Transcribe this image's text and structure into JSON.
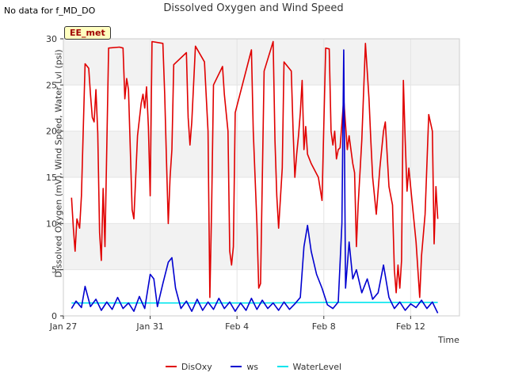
{
  "header": {
    "nodata_text": "No data for f_MD_DO",
    "badge": "EE_met"
  },
  "colors": {
    "DisOxy": "#e00000",
    "ws": "#0000d0",
    "WaterLevel": "#00e5ee",
    "band": "#f2f2f2",
    "grid": "#ffffff"
  },
  "chart_data": {
    "type": "line",
    "title": "Dissolved Oxygen and Wind Speed",
    "xlabel": "Time",
    "ylabel": "Dissolved Oxygen (mV), Wind Speed, Water Lvl (psi)",
    "xlim": [
      "2024-01-27",
      "2024-02-14T06:00"
    ],
    "ylim": [
      0,
      30
    ],
    "yticks": [
      0,
      5,
      10,
      15,
      20,
      25,
      30
    ],
    "xticks": [
      {
        "date": "2024-01-27",
        "label": "Jan 27"
      },
      {
        "date": "2024-01-31",
        "label": "Jan 31"
      },
      {
        "date": "2024-02-04",
        "label": "Feb 4"
      },
      {
        "date": "2024-02-08",
        "label": "Feb 8"
      },
      {
        "date": "2024-02-12",
        "label": "Feb 12"
      }
    ],
    "grid": true,
    "legend_position": "bottom",
    "series": [
      {
        "name": "DisOxy",
        "points": [
          [
            "2024-01-27T09:00",
            12.8
          ],
          [
            "2024-01-27T11:00",
            9.5
          ],
          [
            "2024-01-27T13:00",
            7.0
          ],
          [
            "2024-01-27T15:00",
            10.5
          ],
          [
            "2024-01-27T18:00",
            9.5
          ],
          [
            "2024-01-27T20:00",
            13.0
          ],
          [
            "2024-01-28T00:00",
            27.3
          ],
          [
            "2024-01-28T04:00",
            26.8
          ],
          [
            "2024-01-28T06:00",
            24.0
          ],
          [
            "2024-01-28T08:00",
            21.5
          ],
          [
            "2024-01-28T10:00",
            21.0
          ],
          [
            "2024-01-28T12:00",
            24.5
          ],
          [
            "2024-01-28T14:00",
            19.8
          ],
          [
            "2024-01-28T16:00",
            9.0
          ],
          [
            "2024-01-28T18:00",
            6.0
          ],
          [
            "2024-01-28T20:00",
            13.8
          ],
          [
            "2024-01-28T22:00",
            7.5
          ],
          [
            "2024-01-29T02:00",
            29.0
          ],
          [
            "2024-01-29T14:00",
            29.1
          ],
          [
            "2024-01-29T18:00",
            29.0
          ],
          [
            "2024-01-29T20:00",
            23.5
          ],
          [
            "2024-01-29T22:00",
            25.7
          ],
          [
            "2024-01-30T00:00",
            24.5
          ],
          [
            "2024-01-30T04:00",
            11.5
          ],
          [
            "2024-01-30T06:00",
            10.5
          ],
          [
            "2024-01-30T10:00",
            19.5
          ],
          [
            "2024-01-30T14:00",
            23.0
          ],
          [
            "2024-01-30T16:00",
            24.0
          ],
          [
            "2024-01-30T18:00",
            22.5
          ],
          [
            "2024-01-30T20:00",
            24.8
          ],
          [
            "2024-01-30T22:00",
            20.5
          ],
          [
            "2024-01-31T00:00",
            13.0
          ],
          [
            "2024-01-31T02:00",
            29.7
          ],
          [
            "2024-01-31T14:00",
            29.5
          ],
          [
            "2024-01-31T16:00",
            24.0
          ],
          [
            "2024-01-31T18:00",
            17.0
          ],
          [
            "2024-01-31T20:00",
            10.0
          ],
          [
            "2024-01-31T22:00",
            15.0
          ],
          [
            "2024-02-01T00:00",
            18.0
          ],
          [
            "2024-02-01T02:00",
            27.2
          ],
          [
            "2024-02-01T16:00",
            28.5
          ],
          [
            "2024-02-01T18:00",
            21.5
          ],
          [
            "2024-02-01T20:00",
            18.5
          ],
          [
            "2024-02-01T22:00",
            21.0
          ],
          [
            "2024-02-02T02:00",
            29.2
          ],
          [
            "2024-02-02T12:00",
            27.5
          ],
          [
            "2024-02-02T16:00",
            20.0
          ],
          [
            "2024-02-02T18:00",
            2.0
          ],
          [
            "2024-02-02T20:00",
            12.0
          ],
          [
            "2024-02-02T22:00",
            25.0
          ],
          [
            "2024-02-03T08:00",
            27.0
          ],
          [
            "2024-02-03T10:00",
            24.0
          ],
          [
            "2024-02-03T14:00",
            20.0
          ],
          [
            "2024-02-03T16:00",
            7.0
          ],
          [
            "2024-02-03T18:00",
            5.5
          ],
          [
            "2024-02-03T20:00",
            7.5
          ],
          [
            "2024-02-03T22:00",
            22.0
          ],
          [
            "2024-02-04T16:00",
            28.8
          ],
          [
            "2024-02-04T18:00",
            20.0
          ],
          [
            "2024-02-04T22:00",
            10.0
          ],
          [
            "2024-02-05T00:00",
            3.0
          ],
          [
            "2024-02-05T02:00",
            3.5
          ],
          [
            "2024-02-05T06:00",
            26.5
          ],
          [
            "2024-02-05T16:00",
            29.7
          ],
          [
            "2024-02-05T18:00",
            19.0
          ],
          [
            "2024-02-05T20:00",
            13.0
          ],
          [
            "2024-02-05T22:00",
            9.5
          ],
          [
            "2024-02-06T02:00",
            16.0
          ],
          [
            "2024-02-06T04:00",
            27.5
          ],
          [
            "2024-02-06T12:00",
            26.5
          ],
          [
            "2024-02-06T14:00",
            20.0
          ],
          [
            "2024-02-06T16:00",
            15.0
          ],
          [
            "2024-02-06T18:00",
            17.5
          ],
          [
            "2024-02-06T20:00",
            19.5
          ],
          [
            "2024-02-06T22:00",
            22.0
          ],
          [
            "2024-02-07T00:00",
            25.5
          ],
          [
            "2024-02-07T02:00",
            18.0
          ],
          [
            "2024-02-07T04:00",
            20.5
          ],
          [
            "2024-02-07T06:00",
            17.5
          ],
          [
            "2024-02-07T10:00",
            16.5
          ],
          [
            "2024-02-07T18:00",
            15.0
          ],
          [
            "2024-02-07T22:00",
            12.5
          ],
          [
            "2024-02-08T02:00",
            29.0
          ],
          [
            "2024-02-08T06:00",
            28.9
          ],
          [
            "2024-02-08T08:00",
            20.0
          ],
          [
            "2024-02-08T10:00",
            18.5
          ],
          [
            "2024-02-08T12:00",
            20.0
          ],
          [
            "2024-02-08T14:00",
            17.0
          ],
          [
            "2024-02-08T16:00",
            18.0
          ],
          [
            "2024-02-08T18:00",
            18.2
          ],
          [
            "2024-02-08T22:00",
            23.5
          ],
          [
            "2024-02-09T02:00",
            18.0
          ],
          [
            "2024-02-09T04:00",
            19.5
          ],
          [
            "2024-02-09T08:00",
            16.5
          ],
          [
            "2024-02-09T10:00",
            15.5
          ],
          [
            "2024-02-09T12:00",
            7.5
          ],
          [
            "2024-02-09T14:00",
            12.0
          ],
          [
            "2024-02-09T18:00",
            19.0
          ],
          [
            "2024-02-09T22:00",
            29.5
          ],
          [
            "2024-02-10T02:00",
            23.5
          ],
          [
            "2024-02-10T04:00",
            19.0
          ],
          [
            "2024-02-10T06:00",
            15.0
          ],
          [
            "2024-02-10T10:00",
            11.0
          ],
          [
            "2024-02-10T14:00",
            16.0
          ],
          [
            "2024-02-10T18:00",
            20.0
          ],
          [
            "2024-02-10T20:00",
            21.0
          ],
          [
            "2024-02-11T00:00",
            14.0
          ],
          [
            "2024-02-11T04:00",
            12.0
          ],
          [
            "2024-02-11T06:00",
            5.0
          ],
          [
            "2024-02-11T08:00",
            2.5
          ],
          [
            "2024-02-11T10:00",
            5.5
          ],
          [
            "2024-02-11T12:00",
            3.0
          ],
          [
            "2024-02-11T14:00",
            6.0
          ],
          [
            "2024-02-11T16:00",
            25.5
          ],
          [
            "2024-02-11T18:00",
            19.0
          ],
          [
            "2024-02-11T20:00",
            13.5
          ],
          [
            "2024-02-11T22:00",
            16.0
          ],
          [
            "2024-02-12T02:00",
            12.0
          ],
          [
            "2024-02-12T06:00",
            8.0
          ],
          [
            "2024-02-12T08:00",
            5.0
          ],
          [
            "2024-02-12T10:00",
            2.0
          ],
          [
            "2024-02-12T12:00",
            6.5
          ],
          [
            "2024-02-12T16:00",
            11.0
          ],
          [
            "2024-02-12T20:00",
            21.8
          ],
          [
            "2024-02-13T00:00",
            20.0
          ],
          [
            "2024-02-13T02:00",
            7.8
          ],
          [
            "2024-02-13T04:00",
            14.0
          ],
          [
            "2024-02-13T06:00",
            10.5
          ]
        ]
      },
      {
        "name": "ws",
        "points": [
          [
            "2024-01-27T09:00",
            0.8
          ],
          [
            "2024-01-27T14:00",
            1.6
          ],
          [
            "2024-01-27T20:00",
            0.9
          ],
          [
            "2024-01-28T00:00",
            3.2
          ],
          [
            "2024-01-28T06:00",
            1.0
          ],
          [
            "2024-01-28T12:00",
            1.8
          ],
          [
            "2024-01-28T18:00",
            0.6
          ],
          [
            "2024-01-29T00:00",
            1.5
          ],
          [
            "2024-01-29T06:00",
            0.7
          ],
          [
            "2024-01-29T12:00",
            2.0
          ],
          [
            "2024-01-29T18:00",
            0.8
          ],
          [
            "2024-01-30T00:00",
            1.4
          ],
          [
            "2024-01-30T06:00",
            0.5
          ],
          [
            "2024-01-30T12:00",
            2.1
          ],
          [
            "2024-01-30T18:00",
            0.8
          ],
          [
            "2024-01-31T00:00",
            4.5
          ],
          [
            "2024-01-31T04:00",
            4.0
          ],
          [
            "2024-01-31T08:00",
            1.0
          ],
          [
            "2024-01-31T14:00",
            3.5
          ],
          [
            "2024-01-31T20:00",
            5.8
          ],
          [
            "2024-02-01T00:00",
            6.3
          ],
          [
            "2024-02-01T04:00",
            3.0
          ],
          [
            "2024-02-01T10:00",
            0.8
          ],
          [
            "2024-02-01T16:00",
            1.6
          ],
          [
            "2024-02-01T22:00",
            0.5
          ],
          [
            "2024-02-02T04:00",
            1.8
          ],
          [
            "2024-02-02T10:00",
            0.6
          ],
          [
            "2024-02-02T16:00",
            1.5
          ],
          [
            "2024-02-02T22:00",
            0.7
          ],
          [
            "2024-02-03T04:00",
            1.9
          ],
          [
            "2024-02-03T10:00",
            0.8
          ],
          [
            "2024-02-03T16:00",
            1.5
          ],
          [
            "2024-02-03T22:00",
            0.5
          ],
          [
            "2024-02-04T04:00",
            1.4
          ],
          [
            "2024-02-04T10:00",
            0.6
          ],
          [
            "2024-02-04T16:00",
            1.9
          ],
          [
            "2024-02-04T22:00",
            0.7
          ],
          [
            "2024-02-05T04:00",
            1.7
          ],
          [
            "2024-02-05T10:00",
            0.8
          ],
          [
            "2024-02-05T16:00",
            1.4
          ],
          [
            "2024-02-05T22:00",
            0.6
          ],
          [
            "2024-02-06T04:00",
            1.5
          ],
          [
            "2024-02-06T10:00",
            0.7
          ],
          [
            "2024-02-06T16:00",
            1.3
          ],
          [
            "2024-02-06T22:00",
            2.0
          ],
          [
            "2024-02-07T02:00",
            7.5
          ],
          [
            "2024-02-07T06:00",
            9.8
          ],
          [
            "2024-02-07T10:00",
            7.0
          ],
          [
            "2024-02-07T16:00",
            4.5
          ],
          [
            "2024-02-07T22:00",
            3.0
          ],
          [
            "2024-02-08T04:00",
            1.2
          ],
          [
            "2024-02-08T10:00",
            0.8
          ],
          [
            "2024-02-08T16:00",
            1.5
          ],
          [
            "2024-02-08T20:00",
            10.0
          ],
          [
            "2024-02-08T22:00",
            28.8
          ],
          [
            "2024-02-09T00:00",
            3.0
          ],
          [
            "2024-02-09T04:00",
            8.0
          ],
          [
            "2024-02-09T08:00",
            4.0
          ],
          [
            "2024-02-09T12:00",
            5.0
          ],
          [
            "2024-02-09T18:00",
            2.5
          ],
          [
            "2024-02-10T00:00",
            4.0
          ],
          [
            "2024-02-10T06:00",
            1.8
          ],
          [
            "2024-02-10T12:00",
            2.5
          ],
          [
            "2024-02-10T18:00",
            5.5
          ],
          [
            "2024-02-11T00:00",
            2.0
          ],
          [
            "2024-02-11T06:00",
            0.8
          ],
          [
            "2024-02-11T12:00",
            1.5
          ],
          [
            "2024-02-11T18:00",
            0.6
          ],
          [
            "2024-02-12T00:00",
            1.3
          ],
          [
            "2024-02-12T06:00",
            0.9
          ],
          [
            "2024-02-12T12:00",
            1.7
          ],
          [
            "2024-02-12T18:00",
            0.8
          ],
          [
            "2024-02-13T00:00",
            1.5
          ],
          [
            "2024-02-13T06:00",
            0.3
          ]
        ]
      },
      {
        "name": "WaterLevel",
        "points": [
          [
            "2024-01-27T09:00",
            1.4
          ],
          [
            "2024-01-30T00:00",
            1.4
          ],
          [
            "2024-02-02T00:00",
            1.4
          ],
          [
            "2024-02-05T00:00",
            1.4
          ],
          [
            "2024-02-08T00:00",
            1.45
          ],
          [
            "2024-02-11T00:00",
            1.45
          ],
          [
            "2024-02-13T06:00",
            1.45
          ]
        ]
      }
    ]
  }
}
